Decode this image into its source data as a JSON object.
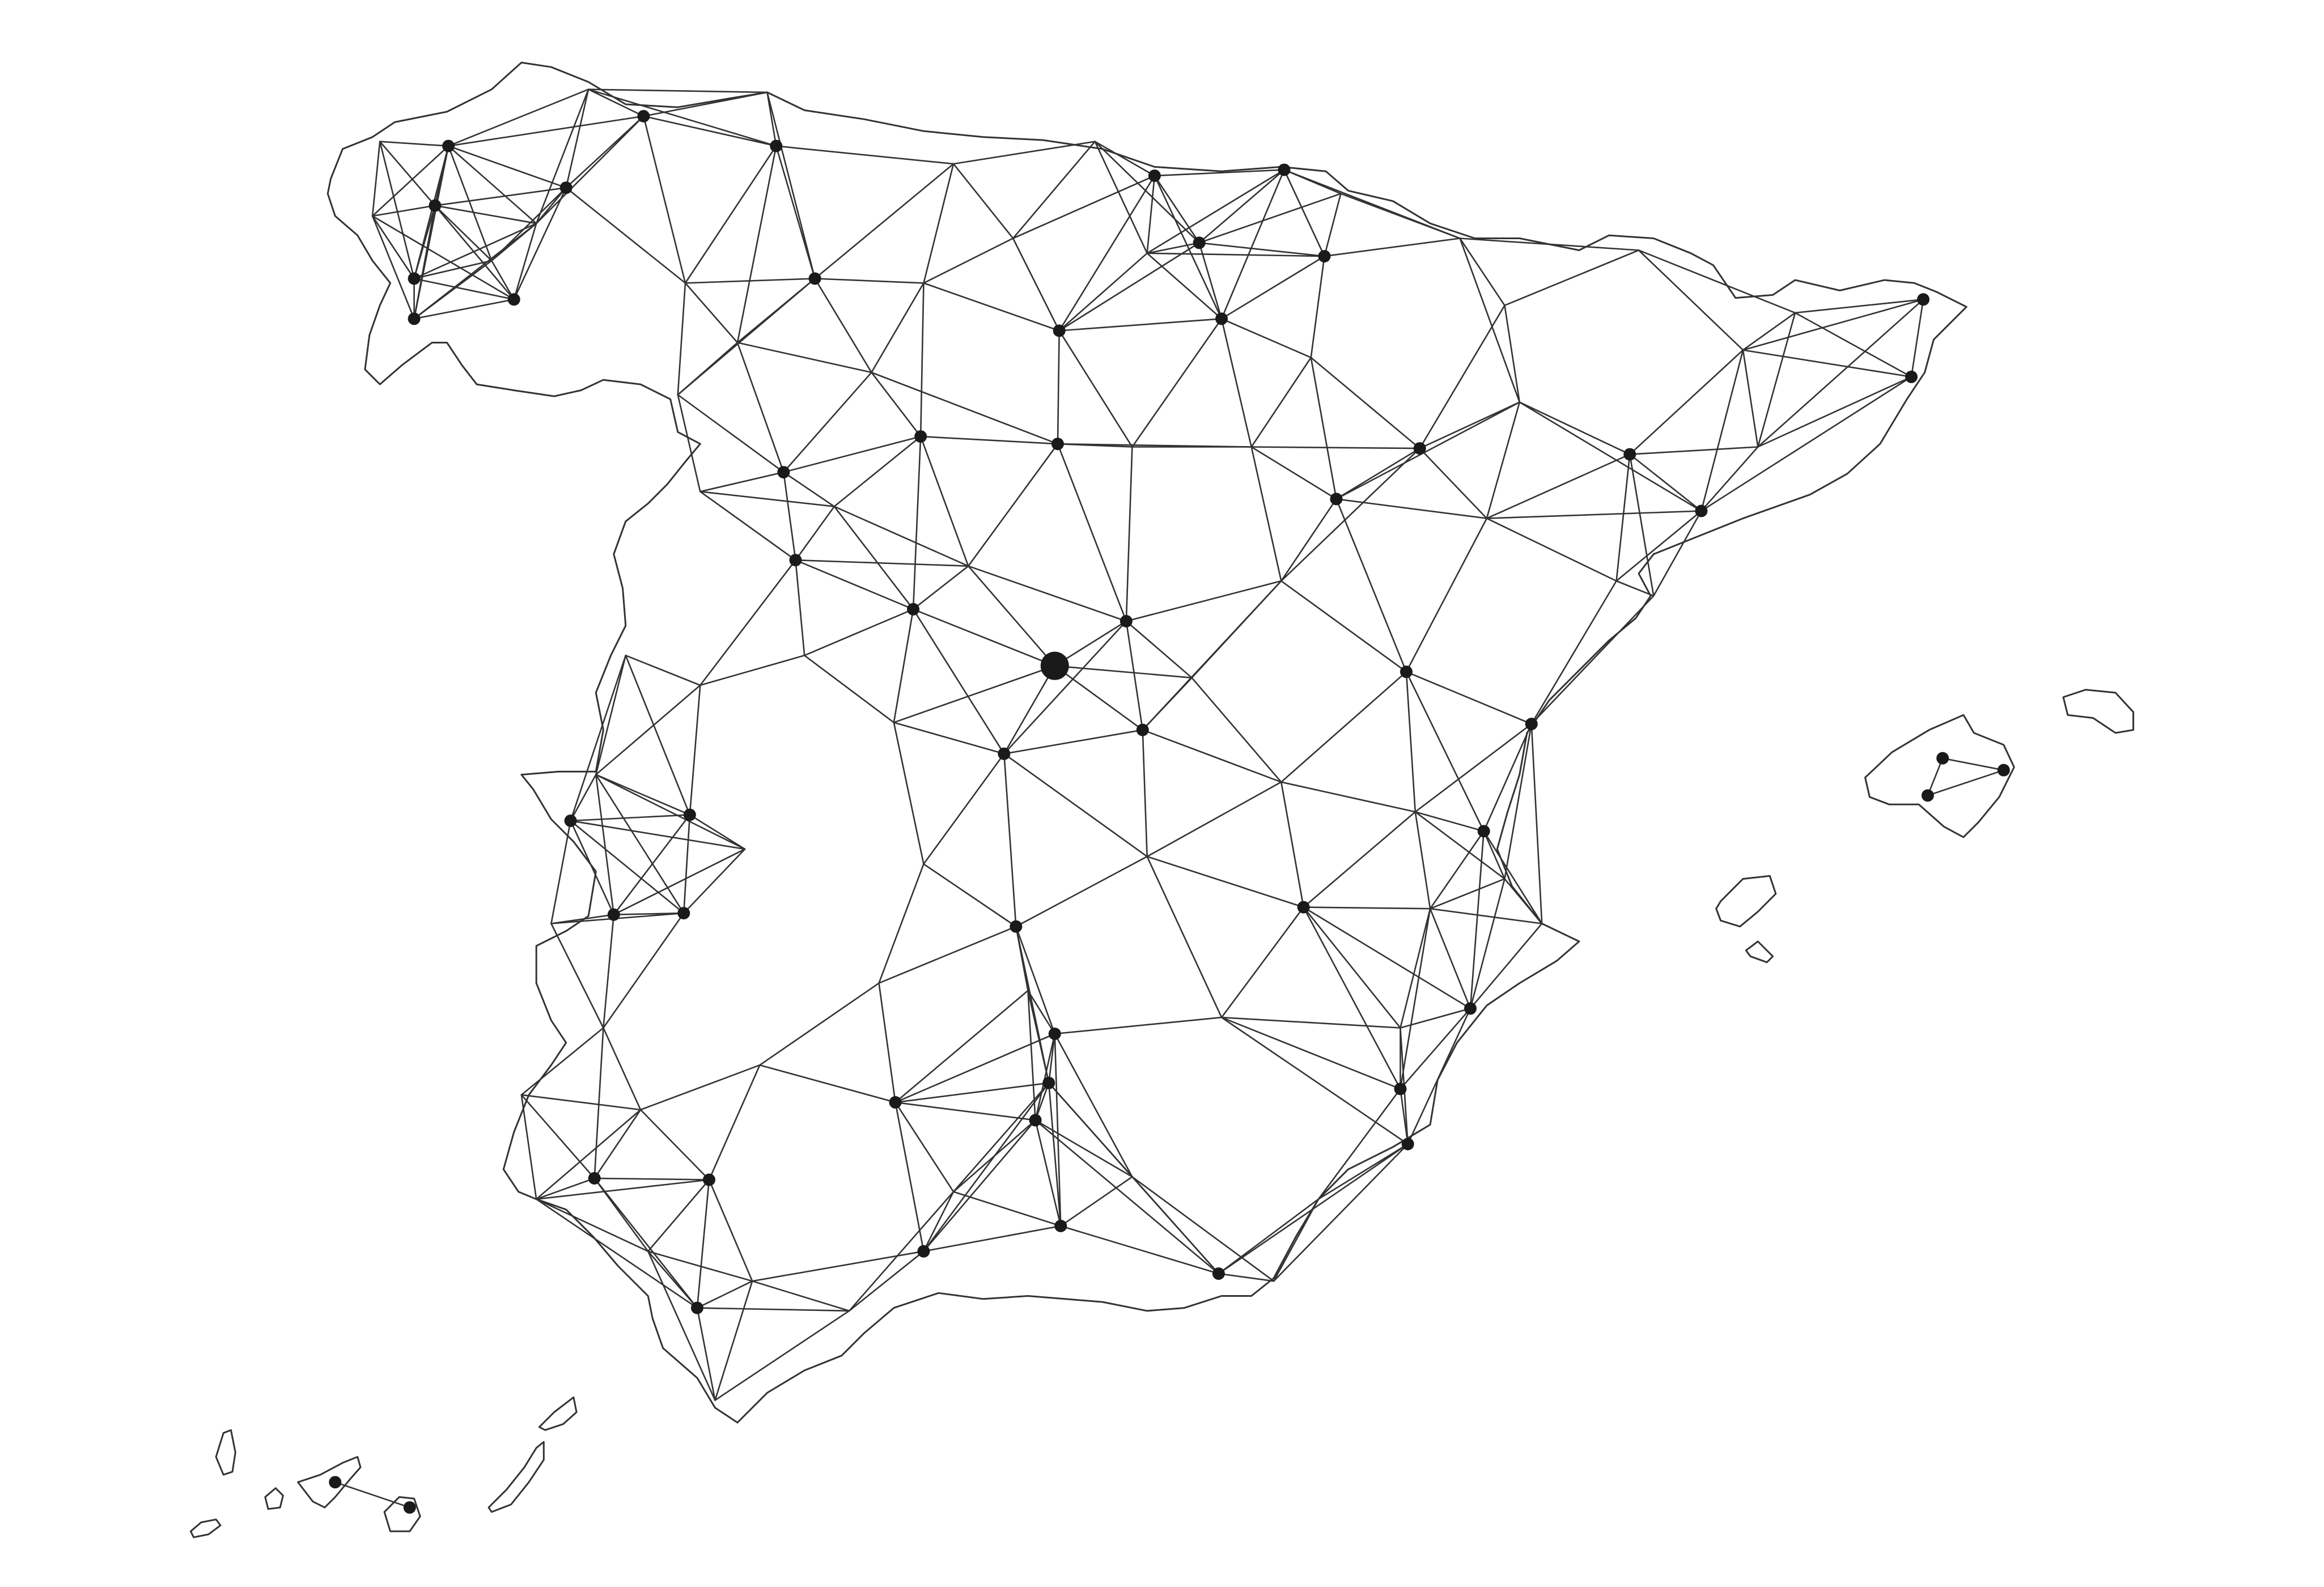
{
  "map": {
    "style": {
      "background": "#ffffff",
      "line_color": "#333333",
      "node_color": "#1a1a1a"
    },
    "capital": "madrid-node"
  }
}
